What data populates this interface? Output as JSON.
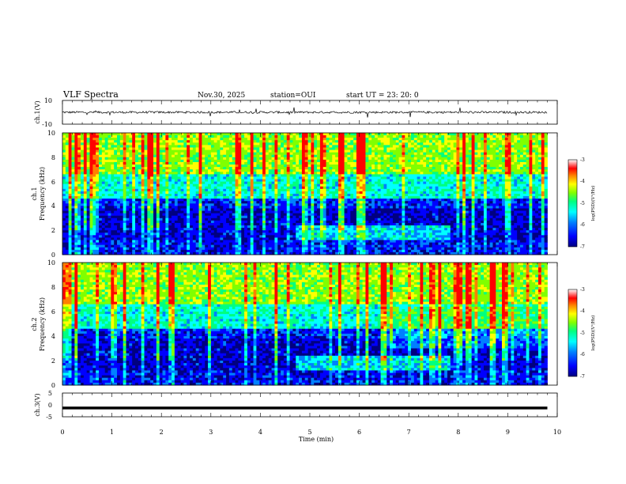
{
  "header": {
    "title": "VLF Spectra",
    "date": "Nov.30, 2025",
    "station": "station=OUI",
    "start_ut": "start  UT  =   23: 20: 0"
  },
  "chart_data": [
    {
      "type": "line",
      "name": "ch1-waveform",
      "ylabel": "ch.1(V)",
      "ylim": [
        -10,
        10
      ],
      "y_ticks": [
        "10",
        "-10"
      ],
      "xlim": [
        0,
        10
      ],
      "baseline_approx": 0
    },
    {
      "type": "heatmap",
      "name": "ch1-spectrogram",
      "ylabel_channel": "ch.1",
      "ylabel": "Frequency  (kHz)",
      "ylim": [
        0,
        10
      ],
      "y_ticks": [
        "0",
        "2",
        "4",
        "6",
        "8",
        "10"
      ],
      "xlim": [
        0,
        10
      ],
      "data_end_min": 9.8,
      "colorbar": {
        "label": "log(PSD)(V²/Hz)",
        "range": [
          -7,
          -3
        ],
        "ticks": [
          "-3",
          "-4",
          "-5",
          "-6",
          "-7"
        ]
      }
    },
    {
      "type": "heatmap",
      "name": "ch2-spectrogram",
      "ylabel_channel": "ch.2",
      "ylabel": "Frequency  (kHz)",
      "ylim": [
        0,
        10
      ],
      "y_ticks": [
        "0",
        "2",
        "4",
        "6",
        "8",
        "10"
      ],
      "xlim": [
        0,
        10
      ],
      "data_end_min": 9.8,
      "colorbar": {
        "label": "log(PSD)(V²/Hz)",
        "range": [
          -7,
          -3
        ],
        "ticks": [
          "-3",
          "-4",
          "-5",
          "-6",
          "-7"
        ]
      }
    },
    {
      "type": "line",
      "name": "ch3-signal",
      "ylabel": "ch.3(V)",
      "ylim": [
        -5,
        5
      ],
      "y_ticks": [
        "5",
        "0",
        "-5"
      ],
      "xlim": [
        0,
        10
      ],
      "constant_value": -1.3
    }
  ],
  "xaxis": {
    "label": "Time  (min)",
    "ticks": [
      "0",
      "1",
      "2",
      "3",
      "4",
      "5",
      "6",
      "7",
      "8",
      "9",
      "10"
    ]
  },
  "colors": {
    "colormap": [
      "#000080",
      "#0000ff",
      "#0080ff",
      "#00ffff",
      "#00ff80",
      "#80ff00",
      "#ffff00",
      "#ff8000",
      "#ff0000",
      "#ffffff"
    ],
    "trace": "#000000"
  }
}
